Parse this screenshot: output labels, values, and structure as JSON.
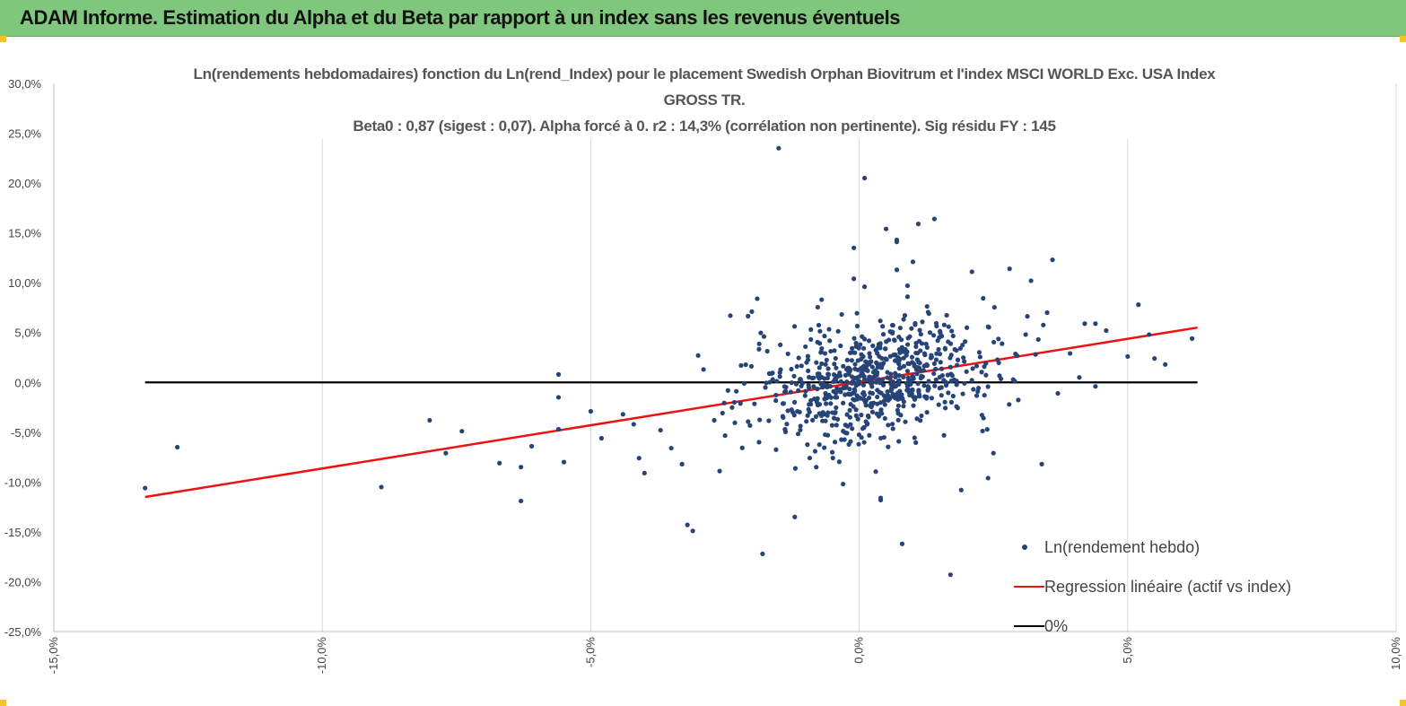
{
  "banner": {
    "title": "ADAM Informe. Estimation du Alpha et du Beta par rapport à un index sans les revenus éventuels"
  },
  "chart_data": {
    "type": "scatter",
    "title_lines": [
      "Ln(rendements hebdomadaires) fonction du Ln(rend_Index)  pour le placement Swedish Orphan Biovitrum   et l'index MSCI WORLD Exc. USA Index",
      "GROSS TR.",
      "Beta0 : 0,87  (sigest : 0,07).  Alpha forcé à 0. r2 : 14,3% (corrélation non pertinente). Sig résidu FY : 145"
    ],
    "xlabel": "",
    "ylabel": "",
    "xlim": [
      -15,
      10
    ],
    "ylim": [
      -25,
      30
    ],
    "x_ticks": [
      "-15,0%",
      "-10,0%",
      "-5,0%",
      "0,0%",
      "5,0%",
      "10,0%"
    ],
    "y_ticks": [
      "30,0%",
      "25,0%",
      "20,0%",
      "15,0%",
      "10,0%",
      "5,0%",
      "0,0%",
      "-5,0%",
      "-10,0%",
      "-15,0%",
      "-20,0%",
      "-25,0%"
    ],
    "grid": "vertical",
    "legend_position": "bottom-right",
    "series": [
      {
        "name": "Ln(rendement hebdo)",
        "kind": "scatter",
        "color": "#264478",
        "points": [
          [
            -13.3,
            -10.6
          ],
          [
            -12.7,
            -6.5
          ],
          [
            -8.0,
            -3.8
          ],
          [
            -7.7,
            -7.1
          ],
          [
            -7.4,
            -4.9
          ],
          [
            -8.9,
            -10.5
          ],
          [
            -6.7,
            -8.1
          ],
          [
            -6.3,
            -8.5
          ],
          [
            -6.3,
            -11.9
          ],
          [
            -6.1,
            -6.4
          ],
          [
            -5.6,
            0.8
          ],
          [
            -5.6,
            -1.5
          ],
          [
            -5.6,
            -4.7
          ],
          [
            -5.5,
            -8.0
          ],
          [
            -5.0,
            -2.9
          ],
          [
            -4.8,
            -5.6
          ],
          [
            -4.4,
            -3.2
          ],
          [
            -4.2,
            -4.2
          ],
          [
            -4.1,
            -7.6
          ],
          [
            -4.0,
            -9.1
          ],
          [
            -3.7,
            -4.8
          ],
          [
            -3.5,
            -6.6
          ],
          [
            -3.3,
            -8.2
          ],
          [
            -3.0,
            2.7
          ],
          [
            -3.1,
            -14.9
          ],
          [
            -3.2,
            -14.3
          ],
          [
            -2.9,
            1.3
          ],
          [
            -2.7,
            -3.8
          ],
          [
            -2.6,
            -8.9
          ],
          [
            -2.4,
            6.7
          ],
          [
            -2.2,
            1.7
          ],
          [
            -2.0,
            7.1
          ],
          [
            -1.9,
            8.4
          ],
          [
            -1.8,
            -17.2
          ],
          [
            -1.5,
            23.5
          ],
          [
            -1.2,
            -13.5
          ],
          [
            -0.9,
            5.3
          ],
          [
            -0.8,
            -8.5
          ],
          [
            -0.7,
            8.3
          ],
          [
            -0.3,
            -10.2
          ],
          [
            -0.1,
            10.4
          ],
          [
            0.1,
            20.5
          ],
          [
            -0.1,
            13.5
          ],
          [
            0.1,
            9.6
          ],
          [
            0.4,
            -11.6
          ],
          [
            0.4,
            -11.8
          ],
          [
            0.5,
            15.4
          ],
          [
            0.7,
            14.3
          ],
          [
            0.7,
            14.1
          ],
          [
            0.7,
            11.3
          ],
          [
            0.8,
            -16.2
          ],
          [
            0.9,
            9.7
          ],
          [
            0.9,
            8.6
          ],
          [
            1.1,
            15.9
          ],
          [
            1.4,
            16.4
          ],
          [
            1.0,
            12.1
          ],
          [
            1.7,
            -19.3
          ],
          [
            1.9,
            -10.8
          ],
          [
            2.1,
            11.1
          ],
          [
            2.5,
            -7.1
          ],
          [
            2.4,
            -9.6
          ],
          [
            2.8,
            11.4
          ],
          [
            3.2,
            10.2
          ],
          [
            3.1,
            4.8
          ],
          [
            3.4,
            -8.2
          ],
          [
            3.5,
            7.0
          ],
          [
            3.6,
            12.3
          ],
          [
            3.7,
            -1.1
          ],
          [
            4.1,
            0.5
          ],
          [
            4.2,
            5.9
          ],
          [
            4.4,
            5.9
          ],
          [
            4.4,
            -0.4
          ],
          [
            4.6,
            5.2
          ],
          [
            5.0,
            2.6
          ],
          [
            5.2,
            7.8
          ],
          [
            5.4,
            4.8
          ],
          [
            5.5,
            2.4
          ],
          [
            5.7,
            1.8
          ],
          [
            6.2,
            4.4
          ]
        ]
      },
      {
        "name": "Regression linéaire (actif vs index)",
        "kind": "line",
        "color": "#ee1111",
        "x": [
          -13.3,
          6.3
        ],
        "y": [
          -11.5,
          5.5
        ]
      },
      {
        "name": "0%",
        "kind": "line",
        "color": "#000000",
        "x": [
          -13.3,
          6.3
        ],
        "y": [
          0,
          0
        ]
      }
    ]
  }
}
